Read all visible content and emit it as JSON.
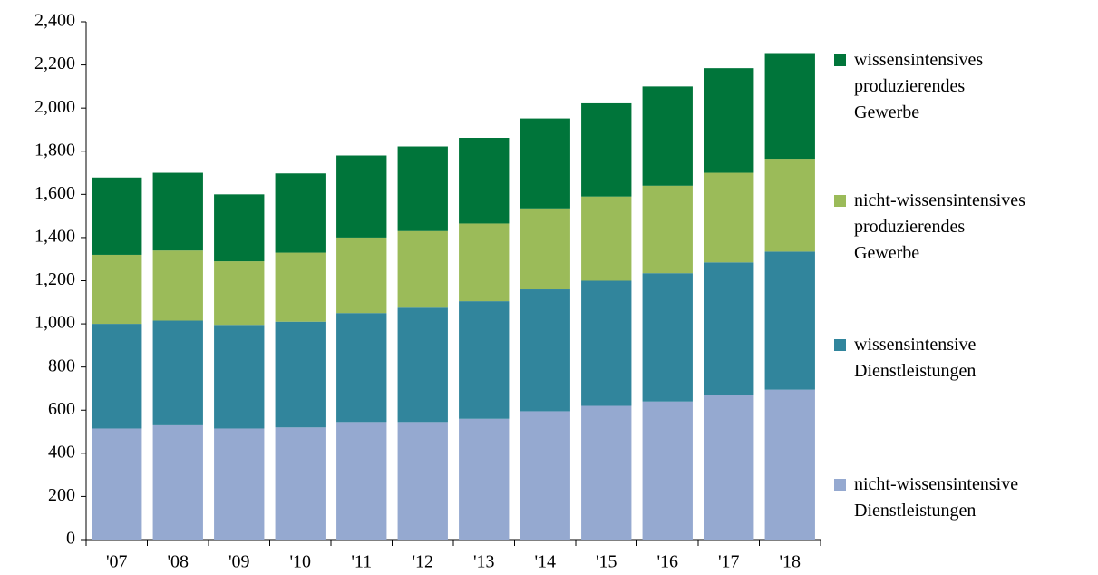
{
  "chart_data": {
    "type": "stacked-bar",
    "categories": [
      "'07",
      "'08",
      "'09",
      "'10",
      "'11",
      "'12",
      "'13",
      "'14",
      "'15",
      "'16",
      "'17",
      "'18"
    ],
    "series": [
      {
        "name": "nicht-wissensintensive\nDienstleistungen",
        "color": "#95a9d0",
        "values": [
          515,
          530,
          515,
          520,
          545,
          545,
          560,
          595,
          620,
          640,
          670,
          695
        ]
      },
      {
        "name": "wissensintensive\nDienstleistungen",
        "color": "#31859c",
        "values": [
          485,
          485,
          480,
          490,
          505,
          530,
          545,
          565,
          580,
          595,
          615,
          640
        ]
      },
      {
        "name": "nicht-wissensintensives\nproduzierendes\nGewerbe",
        "color": "#9bbb59",
        "values": [
          320,
          325,
          295,
          320,
          350,
          355,
          360,
          375,
          390,
          405,
          415,
          430
        ]
      },
      {
        "name": "wissensintensives\nproduzierendes\nGewerbe",
        "color": "#00753a",
        "values": [
          358,
          360,
          310,
          367,
          380,
          392,
          397,
          417,
          432,
          460,
          485,
          490
        ]
      }
    ],
    "ylim": [
      0,
      2400
    ],
    "yticks": [
      0,
      200,
      400,
      600,
      800,
      {
        "value": 1000,
        "label": "1,000"
      },
      {
        "value": 1200,
        "label": "1,200"
      },
      {
        "value": 1400,
        "label": "1,400"
      },
      {
        "value": 1600,
        "label": "1,600"
      },
      {
        "value": 1800,
        "label": "1,800"
      },
      {
        "value": 2000,
        "label": "2,000"
      },
      {
        "value": 2200,
        "label": "2,200"
      },
      {
        "value": 2400,
        "label": "2,400"
      }
    ],
    "grid": false
  }
}
